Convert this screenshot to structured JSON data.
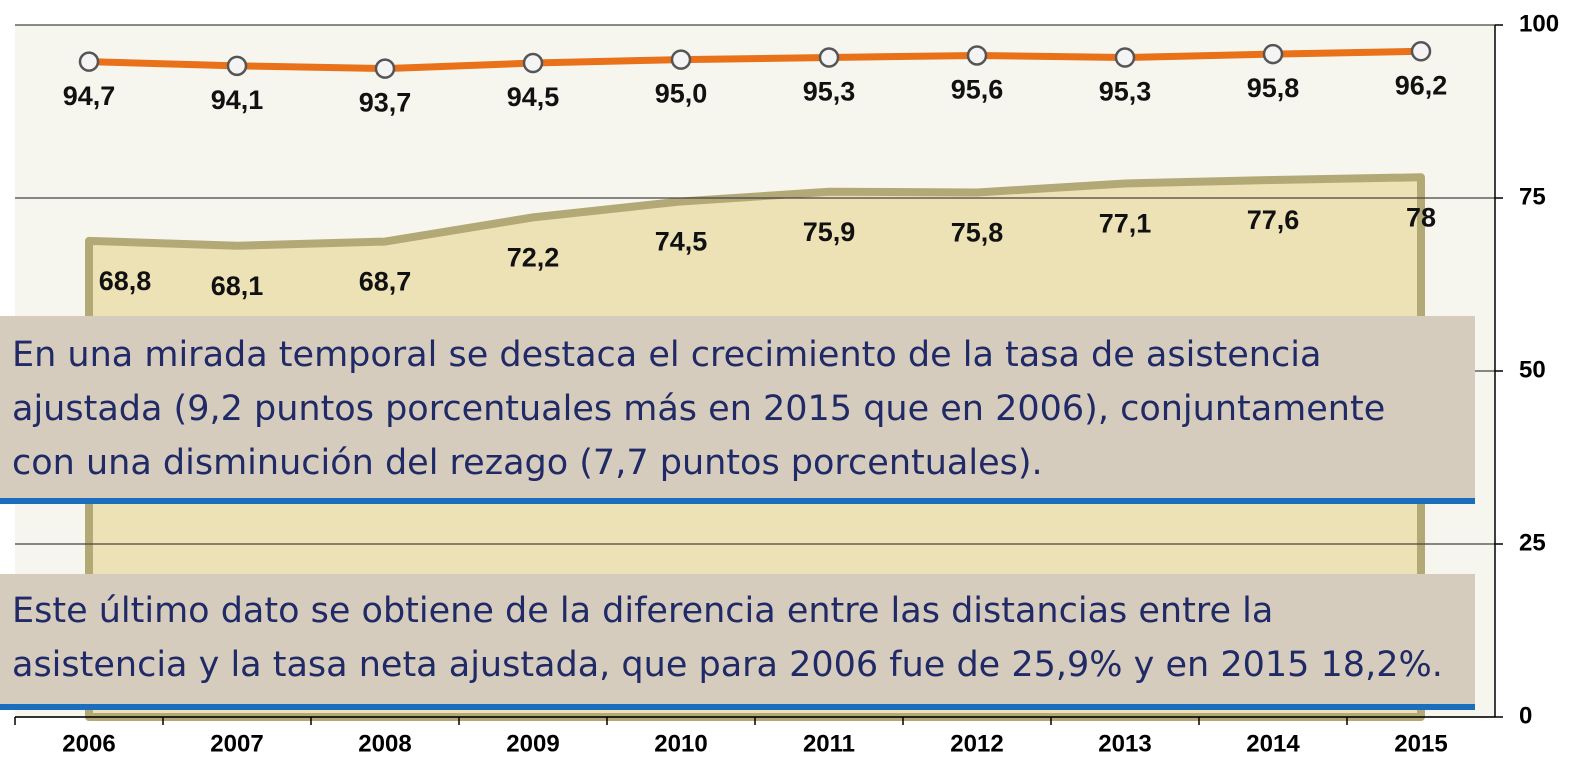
{
  "chart_data": {
    "type": "line",
    "categories": [
      "2006",
      "2007",
      "2008",
      "2009",
      "2010",
      "2011",
      "2012",
      "2013",
      "2014",
      "2015"
    ],
    "series": [
      {
        "color": "#e8711a",
        "area": false,
        "values": [
          94.7,
          94.1,
          93.7,
          94.5,
          95.0,
          95.3,
          95.6,
          95.3,
          95.8,
          96.2
        ],
        "value_labels": [
          "94,7",
          "94,1",
          "93,7",
          "94,5",
          "95,0",
          "95,3",
          "95,6",
          "95,3",
          "95,8",
          "96,2"
        ]
      },
      {
        "color": "#ede1b6",
        "area": true,
        "values": [
          68.8,
          68.1,
          68.7,
          72.2,
          74.5,
          75.9,
          75.8,
          77.1,
          77.6,
          78
        ],
        "value_labels": [
          "68,8",
          "68,1",
          "68,7",
          "72,2",
          "74,5",
          "75,9",
          "75,8",
          "77,1",
          "77,6",
          "78"
        ]
      }
    ],
    "ylim": [
      0,
      100
    ],
    "yticks": [
      0,
      25,
      50,
      75,
      100
    ],
    "grid": true,
    "annotations": [
      [
        "En una mirada temporal se destaca el crecimiento de la tasa de asistencia",
        "ajustada (9,2 puntos porcentuales más en 2015 que en 2006), conjuntamente",
        "con una disminución del rezago (7,7 puntos porcentuales)."
      ],
      [
        "Este último dato se obtiene  de la diferencia entre las distancias entre la",
        "asistencia y la tasa neta ajustada, que para 2006 fue de 25,9% y en 2015 18,2%."
      ]
    ]
  }
}
